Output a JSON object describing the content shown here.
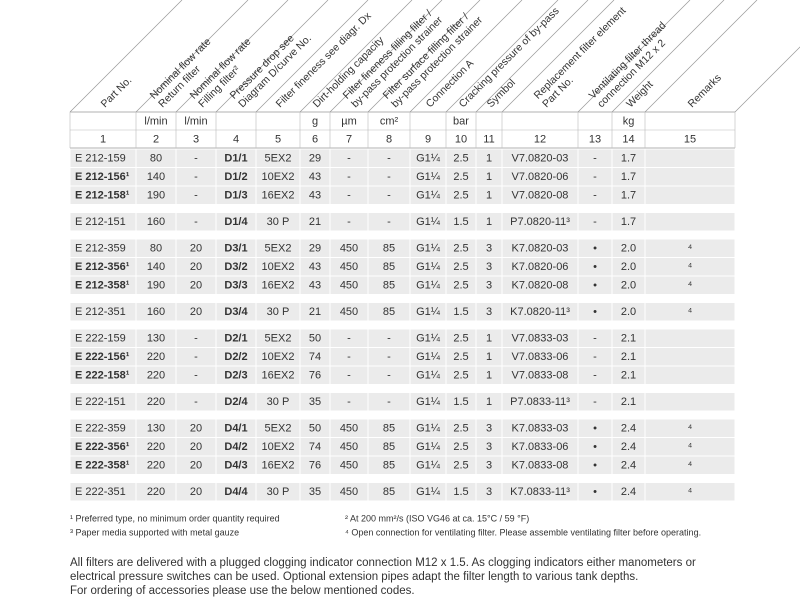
{
  "table": {
    "headers": [
      [
        "Part No."
      ],
      [
        "Nominal flow rate",
        "Return filter"
      ],
      [
        "Nominal flow rate",
        "Filling filter²"
      ],
      [
        "Pressure drop see",
        "Diagram D/curve No."
      ],
      [
        "Filter fineness see diagr. Dx"
      ],
      [
        "Dirt-holding capacity"
      ],
      [
        "Filter fineness filling filter /",
        "by-pass protection strainer"
      ],
      [
        "Filter surface filling filter /",
        "by-pass protection strainer"
      ],
      [
        "Connection A"
      ],
      [
        "Cracking pressure of by-pass"
      ],
      [
        "Symbol"
      ],
      [
        "Replacement filter element",
        "Part No."
      ],
      [
        "Ventilating filter thread",
        "connection M12 x 2"
      ],
      [
        "Weight"
      ],
      [
        "Remarks"
      ]
    ],
    "units": [
      null,
      "l/min",
      "l/min",
      null,
      null,
      "g",
      "µm",
      "cm²",
      null,
      "bar",
      null,
      null,
      null,
      "kg",
      null
    ],
    "numbers": [
      "1",
      "2",
      "3",
      "4",
      "5",
      "6",
      "7",
      "8",
      "9",
      "10",
      "11",
      "12",
      "13",
      "14",
      "15"
    ],
    "groups": [
      {
        "rows": [
          {
            "cells": [
              "E 212-159",
              "80",
              "-",
              "D1/1",
              "5EX2",
              "29",
              "-",
              "-",
              "G1¼",
              "2.5",
              "1",
              "V7.0820-03",
              "-",
              "1.7",
              null
            ]
          },
          {
            "bold": true,
            "cells": [
              "E 212-156¹",
              "140",
              "-",
              "D1/2",
              "10EX2",
              "43",
              "-",
              "-",
              "G1¼",
              "2.5",
              "1",
              "V7.0820-06",
              "-",
              "1.7",
              null
            ]
          },
          {
            "bold": true,
            "cells": [
              "E 212-158¹",
              "190",
              "-",
              "D1/3",
              "16EX2",
              "43",
              "-",
              "-",
              "G1¼",
              "2.5",
              "1",
              "V7.0820-08",
              "-",
              "1.7",
              null
            ]
          }
        ]
      },
      {
        "rows": [
          {
            "cells": [
              "E 212-151",
              "160",
              "-",
              "D1/4",
              "30 P",
              "21",
              "-",
              "-",
              "G1¼",
              "1.5",
              "1",
              "P7.0820-11³",
              "-",
              "1.7",
              null
            ]
          }
        ]
      },
      {
        "rows": [
          {
            "cells": [
              "E 212-359",
              "80",
              "20",
              "D3/1",
              "5EX2",
              "29",
              "450",
              "85",
              "G1¼",
              "2.5",
              "3",
              "K7.0820-03",
              "•",
              "2.0",
              "⁴"
            ]
          },
          {
            "bold": true,
            "cells": [
              "E 212-356¹",
              "140",
              "20",
              "D3/2",
              "10EX2",
              "43",
              "450",
              "85",
              "G1¼",
              "2.5",
              "3",
              "K7.0820-06",
              "•",
              "2.0",
              "⁴"
            ]
          },
          {
            "bold": true,
            "cells": [
              "E 212-358¹",
              "190",
              "20",
              "D3/3",
              "16EX2",
              "43",
              "450",
              "85",
              "G1¼",
              "2.5",
              "3",
              "K7.0820-08",
              "•",
              "2.0",
              "⁴"
            ]
          }
        ]
      },
      {
        "rows": [
          {
            "cells": [
              "E 212-351",
              "160",
              "20",
              "D3/4",
              "30 P",
              "21",
              "450",
              "85",
              "G1¼",
              "1.5",
              "3",
              "K7.0820-11³",
              "•",
              "2.0",
              "⁴"
            ]
          }
        ]
      },
      {
        "rows": [
          {
            "cells": [
              "E 222-159",
              "130",
              "-",
              "D2/1",
              "5EX2",
              "50",
              "-",
              "-",
              "G1¼",
              "2.5",
              "1",
              "V7.0833-03",
              "-",
              "2.1",
              null
            ]
          },
          {
            "bold": true,
            "cells": [
              "E 222-156¹",
              "220",
              "-",
              "D2/2",
              "10EX2",
              "74",
              "-",
              "-",
              "G1¼",
              "2.5",
              "1",
              "V7.0833-06",
              "-",
              "2.1",
              null
            ]
          },
          {
            "bold": true,
            "cells": [
              "E 222-158¹",
              "220",
              "-",
              "D2/3",
              "16EX2",
              "76",
              "-",
              "-",
              "G1¼",
              "2.5",
              "1",
              "V7.0833-08",
              "-",
              "2.1",
              null
            ]
          }
        ]
      },
      {
        "rows": [
          {
            "cells": [
              "E 222-151",
              "220",
              "-",
              "D2/4",
              "30 P",
              "35",
              "-",
              "-",
              "G1¼",
              "1.5",
              "1",
              "P7.0833-11³",
              "-",
              "2.1",
              null
            ]
          }
        ]
      },
      {
        "rows": [
          {
            "cells": [
              "E 222-359",
              "130",
              "20",
              "D4/1",
              "5EX2",
              "50",
              "450",
              "85",
              "G1¼",
              "2.5",
              "3",
              "K7.0833-03",
              "•",
              "2.4",
              "⁴"
            ]
          },
          {
            "bold": true,
            "cells": [
              "E 222-356¹",
              "220",
              "20",
              "D4/2",
              "10EX2",
              "74",
              "450",
              "85",
              "G1¼",
              "2.5",
              "3",
              "K7.0833-06",
              "•",
              "2.4",
              "⁴"
            ]
          },
          {
            "bold": true,
            "cells": [
              "E 222-358¹",
              "220",
              "20",
              "D4/3",
              "16EX2",
              "76",
              "450",
              "85",
              "G1¼",
              "2.5",
              "3",
              "K7.0833-08",
              "•",
              "2.4",
              "⁴"
            ]
          }
        ]
      },
      {
        "rows": [
          {
            "cells": [
              "E 222-351",
              "220",
              "20",
              "D4/4",
              "30 P",
              "35",
              "450",
              "85",
              "G1¼",
              "1.5",
              "3",
              "K7.0833-11³",
              "•",
              "2.4",
              "⁴"
            ]
          }
        ]
      }
    ]
  },
  "footnotes": [
    "¹ Preferred type, no minimum order quantity required",
    "³ Paper media supported with metal gauze",
    "² At 200 mm²/s (ISO VG46 at ca. 15°C / 59 °F)",
    "⁴ Open connection for ventilating filter. Please assemble ventilating filter before operating."
  ],
  "paragraph": [
    "All filters are delivered with a plugged clogging indicator connection M12 x 1.5. As clogging indicators either manometers or",
    "electrical pressure switches can be used. Optional extension pipes adapt the filter length to various tank depths.",
    "For ordering of accessories please use the below mentioned codes."
  ]
}
